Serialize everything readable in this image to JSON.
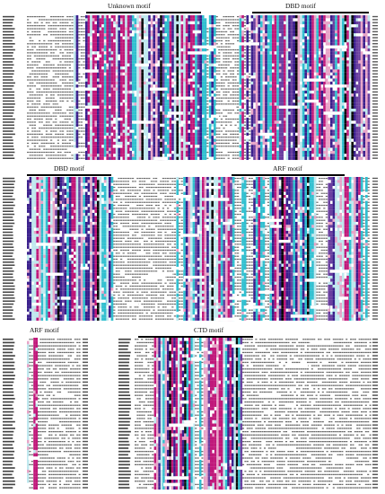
{
  "figure": {
    "panel_1": {
      "motifs": [
        {
          "label": "Unknown motif"
        },
        {
          "label": "DBD motif"
        }
      ]
    },
    "panel_2": {
      "motifs": [
        {
          "label": "DBD motif"
        },
        {
          "label": "ARF motif"
        }
      ]
    },
    "panel_3": {
      "motifs": [
        {
          "label": "ARF motif"
        },
        {
          "label": "CTD motif"
        }
      ]
    }
  },
  "colors": {
    "identical": "#0a0a0a",
    "high": "#c0187a",
    "medium": "#3a1f8c",
    "low": "#6a3fa0",
    "similar": "#2fbfcf",
    "weak": "#e8a4c8",
    "pale": "#bfe8ee",
    "gap": "#ffffff"
  }
}
